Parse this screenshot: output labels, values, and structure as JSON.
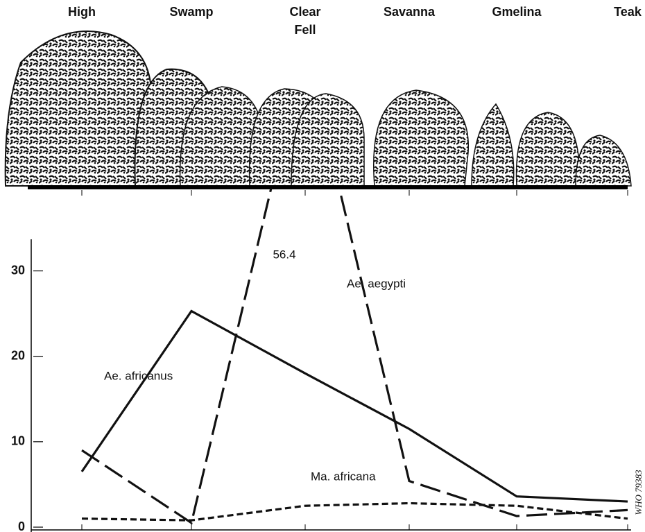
{
  "chart_data": {
    "type": "line",
    "categories": [
      "High",
      "Swamp",
      "Clear Fell",
      "Savanna",
      "Gmelina",
      "Teak"
    ],
    "series": [
      {
        "name": "Ae. africanus",
        "color": "#111111",
        "style": "solid",
        "values": [
          6.5,
          25.3,
          18,
          11.5,
          3.6,
          3.0
        ]
      },
      {
        "name": "Ae. aegypti",
        "color": "#111111",
        "style": "dashed",
        "values": [
          9,
          0.5,
          56.4,
          5.4,
          1.3,
          2.0
        ]
      },
      {
        "name": "Ma. africana",
        "color": "#111111",
        "style": "dotted",
        "values": [
          1.0,
          0.8,
          2.5,
          2.8,
          2.5,
          1.0
        ]
      }
    ],
    "ylim": [
      0,
      33.7
    ],
    "yticks": [
      0,
      10,
      20,
      30
    ],
    "credit": "WHO 79383"
  }
}
